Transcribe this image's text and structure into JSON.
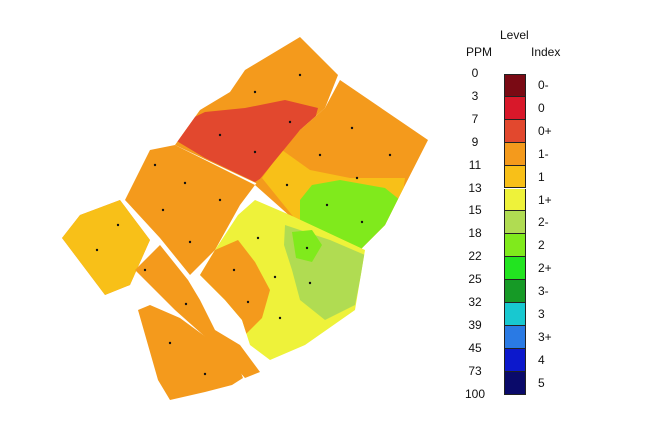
{
  "legend": {
    "header_level": "Level",
    "header_ppm": "PPM",
    "header_index": "Index",
    "ppm_values": [
      "0",
      "3",
      "7",
      "9",
      "11",
      "13",
      "15",
      "18",
      "22",
      "25",
      "32",
      "39",
      "45",
      "73",
      "100"
    ],
    "classes": [
      {
        "index": "0-",
        "color": "#7a0a14"
      },
      {
        "index": "0",
        "color": "#d8182a"
      },
      {
        "index": "0+",
        "color": "#e2482e"
      },
      {
        "index": "1-",
        "color": "#f49a1c"
      },
      {
        "index": "1",
        "color": "#f8c018"
      },
      {
        "index": "1+",
        "color": "#eef23a"
      },
      {
        "index": "2-",
        "color": "#b0dc52"
      },
      {
        "index": "2",
        "color": "#80ea1c"
      },
      {
        "index": "2+",
        "color": "#22e420"
      },
      {
        "index": "3-",
        "color": "#169a26"
      },
      {
        "index": "3",
        "color": "#18c8d0"
      },
      {
        "index": "3+",
        "color": "#2a7ae4"
      },
      {
        "index": "4",
        "color": "#0c18cc"
      },
      {
        "index": "5",
        "color": "#0a0a6a"
      }
    ]
  },
  "map": {
    "colors": {
      "base": "#f49a1c",
      "level_0plus": "#e2482e",
      "level_1": "#f8c018",
      "level_1plus": "#eef23a",
      "level_2minus": "#b0dc52",
      "level_2": "#80ea1c"
    }
  }
}
